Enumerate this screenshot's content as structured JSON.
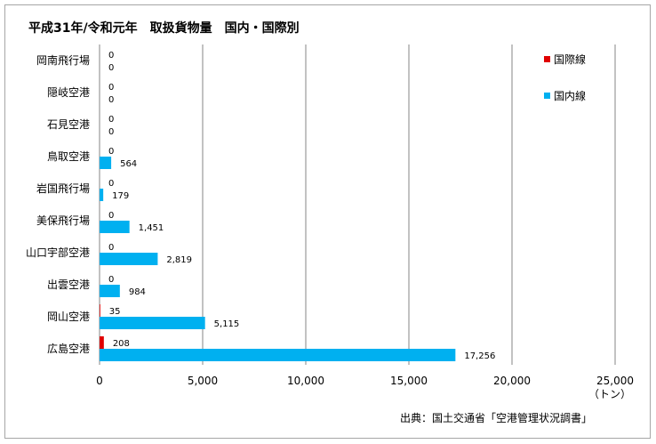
{
  "chart_data": {
    "type": "bar",
    "orientation": "horizontal",
    "title": "平成31年/令和元年　取扱貨物量　国内・国際別",
    "categories": [
      "岡南飛行場",
      "隠岐空港",
      "石見空港",
      "鳥取空港",
      "岩国飛行場",
      "美保飛行場",
      "山口宇部空港",
      "出雲空港",
      "岡山空港",
      "広島空港"
    ],
    "series": [
      {
        "name": "国際線",
        "color": "#e00000",
        "values": [
          0,
          0,
          0,
          0,
          0,
          0,
          0,
          0,
          35,
          208
        ],
        "labels": [
          "0",
          "0",
          "0",
          "0",
          "0",
          "0",
          "0",
          "0",
          "35",
          "208"
        ]
      },
      {
        "name": "国内線",
        "color": "#00b0f0",
        "values": [
          0,
          0,
          0,
          564,
          179,
          1451,
          2819,
          984,
          5115,
          17256
        ],
        "labels": [
          "0",
          "0",
          "0",
          "564",
          "179",
          "1,451",
          "2,819",
          "984",
          "5,115",
          "17,256"
        ]
      }
    ],
    "xlim": [
      0,
      25000
    ],
    "x_ticks": [
      0,
      5000,
      10000,
      15000,
      20000,
      25000
    ],
    "x_tick_labels": [
      "0",
      "5,000",
      "10,000",
      "15,000",
      "20,000",
      "25,000"
    ],
    "unit_label": "（トン）",
    "grid": true,
    "legend_position": "top-right",
    "source": "出典：国土交通省「空港管理状況調書」"
  }
}
